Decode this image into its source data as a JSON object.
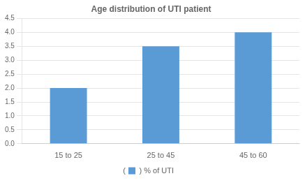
{
  "chart_data": {
    "type": "bar",
    "title": "Age distribution of UTI patient",
    "categories": [
      "15 to 25",
      "25 to 45",
      "45 to 60"
    ],
    "series": [
      {
        "name": ") % of UTI",
        "color": "#5b9bd5",
        "values": [
          2.0,
          3.5,
          4.0
        ]
      }
    ],
    "ylim": [
      0,
      4.5
    ],
    "yticks": [
      {
        "value": 0,
        "label": "0.0"
      },
      0.5,
      {
        "value": 1,
        "label": "1.0"
      },
      1.5,
      {
        "value": 2,
        "label": "2.0"
      },
      2.5,
      {
        "value": 3,
        "label": "3.0"
      },
      3.5,
      {
        "value": 4,
        "label": "4.0"
      },
      4.5
    ],
    "grid": true,
    "legend": "bottom",
    "annotations": [
      "("
    ]
  }
}
